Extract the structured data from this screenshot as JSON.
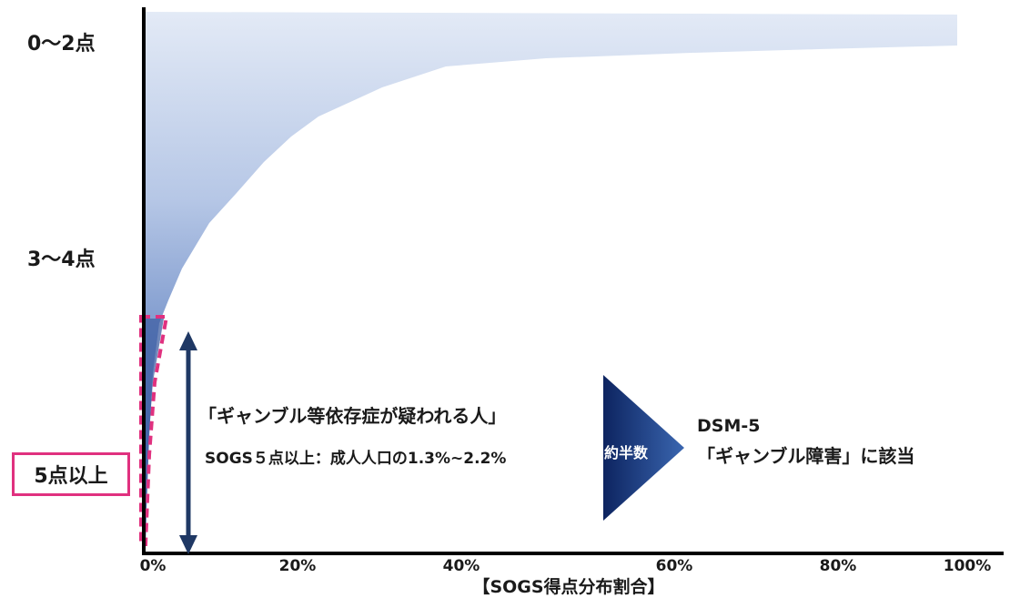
{
  "y_labels": {
    "top": "0～2点",
    "middle": "3～4点",
    "bottom": "5点以上"
  },
  "x_axis": {
    "ticks": [
      "0%",
      "20%",
      "40%",
      "60%",
      "80%",
      "100%"
    ],
    "title": "【SOGS得点分布割合】"
  },
  "annotations": {
    "suspected": "「ギャンブル等依存症が疑われる人」",
    "sogs_note": "SOGS５点以上：成人人口の1.3%~2.2%",
    "about_half": "約半数",
    "dsm_title": "DSM-5",
    "dsm_desc": "「ギャンブル障害」に該当"
  },
  "colors": {
    "gradient_light": "#dde6f4",
    "gradient_dark": "#2f5597",
    "axis": "#000000",
    "highlight": "#e0317f",
    "arrow_dark": "#1f3864",
    "arrow_triangle_dark": "#0d2460"
  }
}
